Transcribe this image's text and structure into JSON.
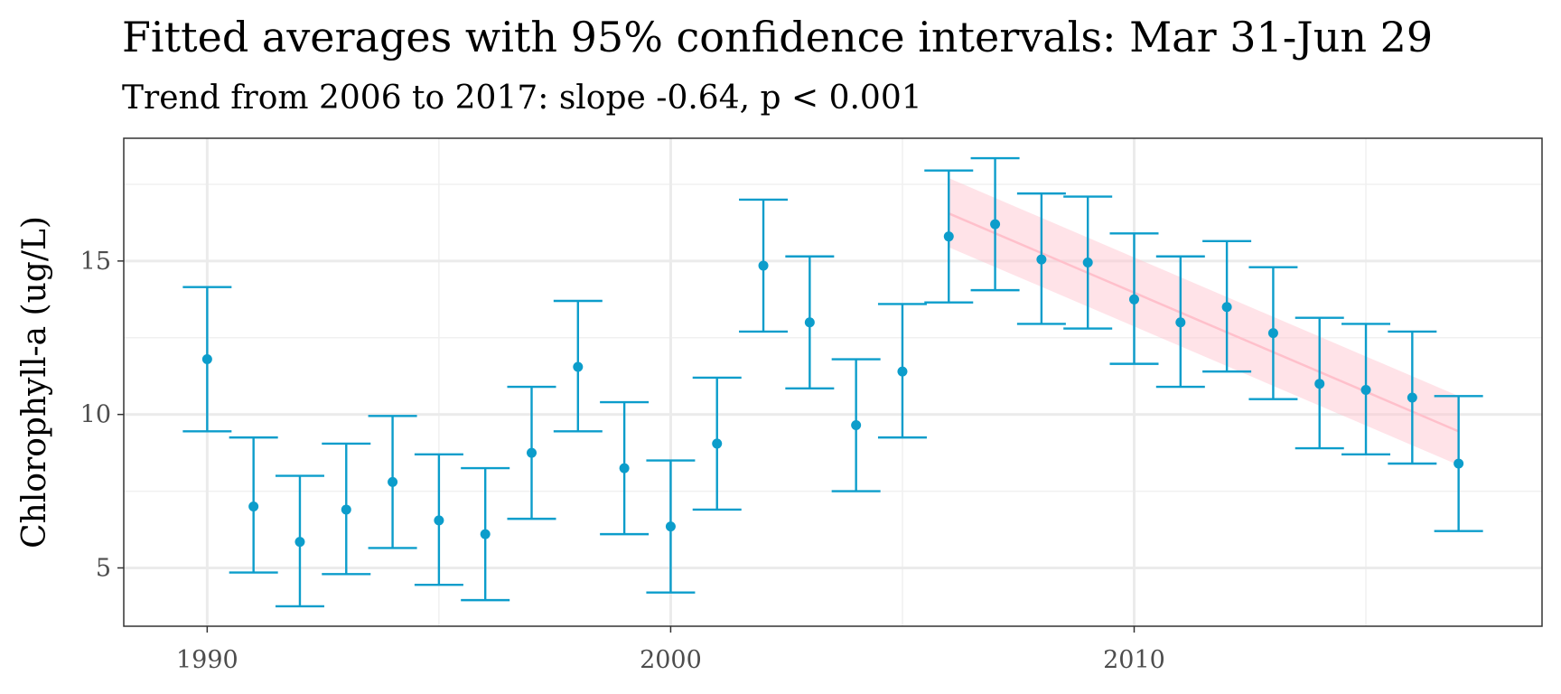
{
  "chart_data": {
    "type": "scatter",
    "title": "Fitted averages with 95% confidence intervals: Mar 31-Jun 29",
    "subtitle": "Trend from 2006 to 2017: slope -0.64, p < 0.001",
    "xlabel": "",
    "ylabel": "Chlorophyll-a (ug/L)",
    "xlim": [
      1988.2,
      2018.8
    ],
    "ylim": [
      3.1,
      19
    ],
    "x_ticks": [
      1990,
      2000,
      2010
    ],
    "y_ticks": [
      5,
      10,
      15
    ],
    "grid": true,
    "colors": {
      "points": "#0C9DCB",
      "trend": "#FFC0CB",
      "trend_band": "#FFC0CB"
    },
    "points": [
      {
        "x": 1990,
        "y": 11.8,
        "lo": 9.45,
        "hi": 14.15
      },
      {
        "x": 1991,
        "y": 7.0,
        "lo": 4.85,
        "hi": 9.25
      },
      {
        "x": 1992,
        "y": 5.85,
        "lo": 3.75,
        "hi": 8.0
      },
      {
        "x": 1993,
        "y": 6.9,
        "lo": 4.8,
        "hi": 9.05
      },
      {
        "x": 1994,
        "y": 7.8,
        "lo": 5.65,
        "hi": 9.95
      },
      {
        "x": 1995,
        "y": 6.55,
        "lo": 4.45,
        "hi": 8.7
      },
      {
        "x": 1996,
        "y": 6.1,
        "lo": 3.95,
        "hi": 8.25
      },
      {
        "x": 1997,
        "y": 8.75,
        "lo": 6.6,
        "hi": 10.9
      },
      {
        "x": 1998,
        "y": 11.55,
        "lo": 9.45,
        "hi": 13.7
      },
      {
        "x": 1999,
        "y": 8.25,
        "lo": 6.1,
        "hi": 10.4
      },
      {
        "x": 2000,
        "y": 6.35,
        "lo": 4.2,
        "hi": 8.5
      },
      {
        "x": 2001,
        "y": 9.05,
        "lo": 6.9,
        "hi": 11.2
      },
      {
        "x": 2002,
        "y": 14.85,
        "lo": 12.7,
        "hi": 17.0
      },
      {
        "x": 2003,
        "y": 13.0,
        "lo": 10.85,
        "hi": 15.15
      },
      {
        "x": 2004,
        "y": 9.65,
        "lo": 7.5,
        "hi": 11.8
      },
      {
        "x": 2005,
        "y": 11.4,
        "lo": 9.25,
        "hi": 13.6
      },
      {
        "x": 2006,
        "y": 15.8,
        "lo": 13.65,
        "hi": 17.95
      },
      {
        "x": 2007,
        "y": 16.2,
        "lo": 14.05,
        "hi": 18.35
      },
      {
        "x": 2008,
        "y": 15.05,
        "lo": 12.95,
        "hi": 17.2
      },
      {
        "x": 2009,
        "y": 14.95,
        "lo": 12.8,
        "hi": 17.1
      },
      {
        "x": 2010,
        "y": 13.75,
        "lo": 11.65,
        "hi": 15.9
      },
      {
        "x": 2011,
        "y": 13.0,
        "lo": 10.9,
        "hi": 15.15
      },
      {
        "x": 2012,
        "y": 13.5,
        "lo": 11.4,
        "hi": 15.65
      },
      {
        "x": 2013,
        "y": 12.65,
        "lo": 10.5,
        "hi": 14.8
      },
      {
        "x": 2014,
        "y": 11.0,
        "lo": 8.9,
        "hi": 13.15
      },
      {
        "x": 2015,
        "y": 10.8,
        "lo": 8.7,
        "hi": 12.95
      },
      {
        "x": 2016,
        "y": 10.55,
        "lo": 8.4,
        "hi": 12.7
      },
      {
        "x": 2017,
        "y": 8.4,
        "lo": 6.2,
        "hi": 10.6
      }
    ],
    "trend": {
      "x_start": 2006,
      "x_end": 2017,
      "y_start": 16.55,
      "y_end": 9.45,
      "band_start": [
        15.45,
        17.7
      ],
      "band_end": [
        8.35,
        10.6
      ]
    }
  }
}
